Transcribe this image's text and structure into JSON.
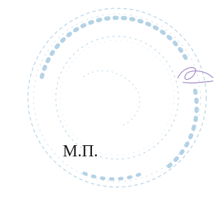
{
  "stamp": {
    "label": "М.П."
  }
}
